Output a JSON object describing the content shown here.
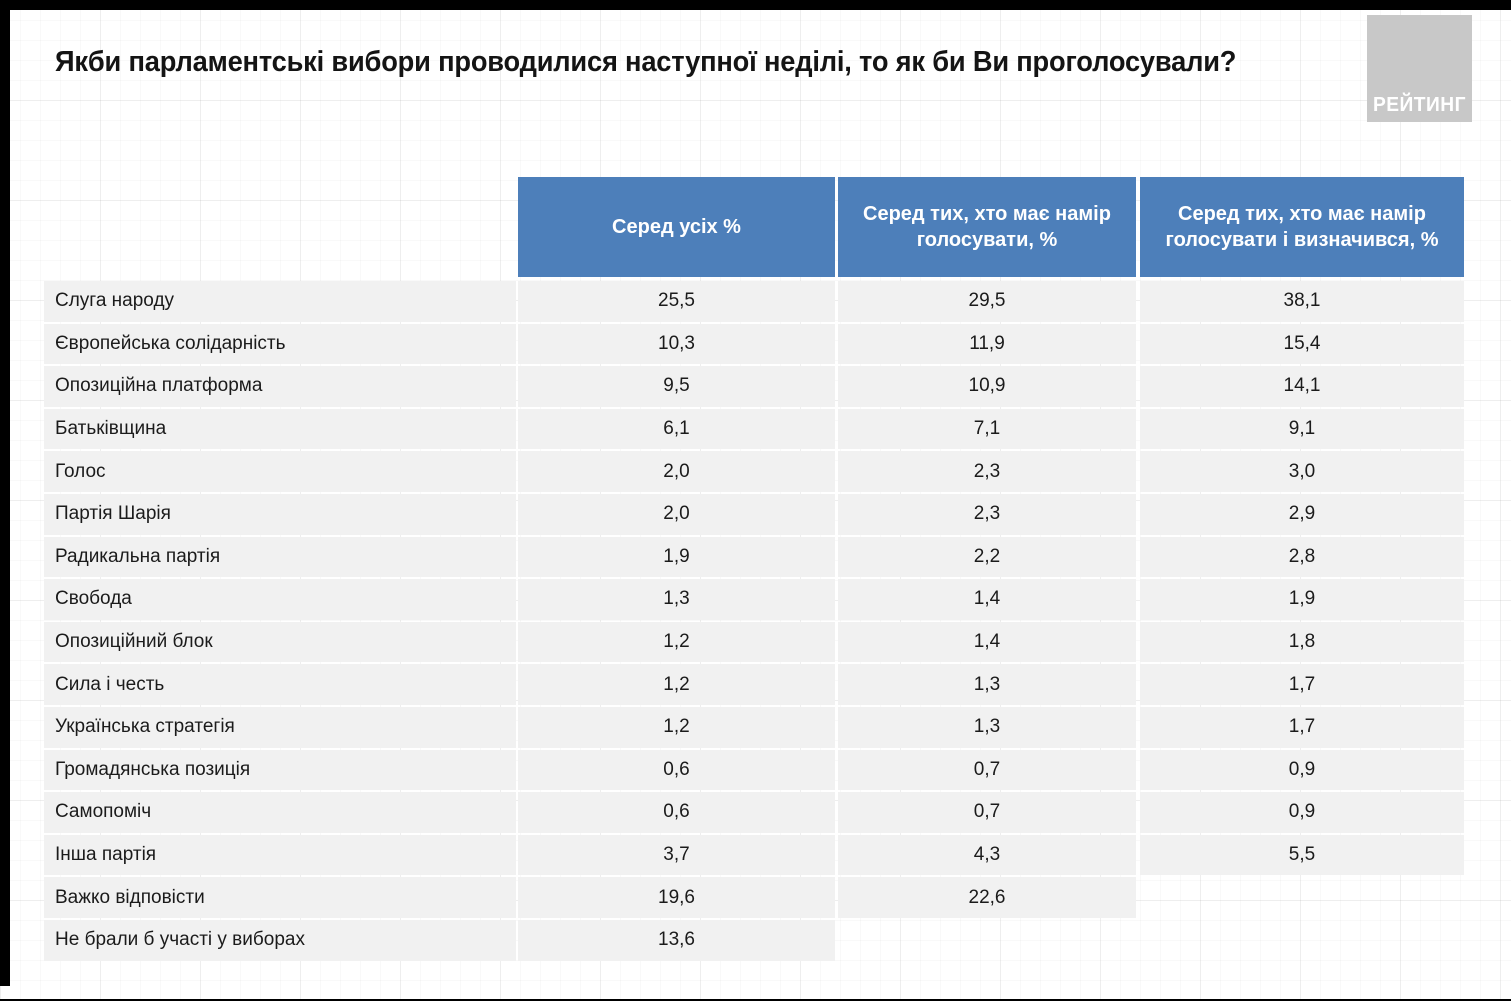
{
  "slide": {
    "title": "Якби парламентські вибори проводилися наступної неділі, то як би Ви проголосували?",
    "logo": {
      "text": "РЕЙТИНГ"
    }
  },
  "colors": {
    "header_blue": "#4d7fba",
    "row_bg": "#f1f1f1",
    "logo_bg": "#c8c8c8"
  },
  "chart_data": {
    "type": "table",
    "title": "Якби парламентські вибори проводилися наступної неділі, то як би Ви проголосували?",
    "columns": [
      "Серед усіх %",
      "Серед тих, хто має намір голосувати, %",
      "Серед тих, хто має намір голосувати і визначився, %"
    ],
    "rows": [
      {
        "label": "Слуга народу",
        "values": [
          "25,5",
          "29,5",
          "38,1"
        ]
      },
      {
        "label": "Європейська солідарність",
        "values": [
          "10,3",
          "11,9",
          "15,4"
        ]
      },
      {
        "label": "Опозиційна платформа",
        "values": [
          "9,5",
          "10,9",
          "14,1"
        ]
      },
      {
        "label": "Батьківщина",
        "values": [
          "6,1",
          "7,1",
          "9,1"
        ]
      },
      {
        "label": "Голос",
        "values": [
          "2,0",
          "2,3",
          "3,0"
        ]
      },
      {
        "label": "Партія Шарія",
        "values": [
          "2,0",
          "2,3",
          "2,9"
        ]
      },
      {
        "label": "Радикальна партія",
        "values": [
          "1,9",
          "2,2",
          "2,8"
        ]
      },
      {
        "label": "Свобода",
        "values": [
          "1,3",
          "1,4",
          "1,9"
        ]
      },
      {
        "label": "Опозиційний блок",
        "values": [
          "1,2",
          "1,4",
          "1,8"
        ]
      },
      {
        "label": "Сила і честь",
        "values": [
          "1,2",
          "1,3",
          "1,7"
        ]
      },
      {
        "label": "Українська стратегія",
        "values": [
          "1,2",
          "1,3",
          "1,7"
        ]
      },
      {
        "label": "Громадянська позиція",
        "values": [
          "0,6",
          "0,7",
          "0,9"
        ]
      },
      {
        "label": "Самопоміч",
        "values": [
          "0,6",
          "0,7",
          "0,9"
        ]
      },
      {
        "label": "Інша партія",
        "values": [
          "3,7",
          "4,3",
          "5,5"
        ]
      },
      {
        "label": "Важко відповісти",
        "values": [
          "19,6",
          "22,6",
          null
        ]
      },
      {
        "label": "Не брали б участі у виборах",
        "values": [
          "13,6",
          null,
          null
        ]
      }
    ]
  }
}
